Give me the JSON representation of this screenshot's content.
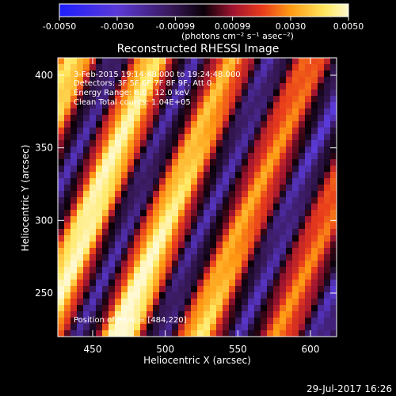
{
  "colorbar": {
    "ticks": [
      {
        "value": -0.005,
        "label": "-0.0050"
      },
      {
        "value": -0.003,
        "label": "-0.0030"
      },
      {
        "value": -0.00099,
        "label": "-0.00099"
      },
      {
        "value": 0.00099,
        "label": "0.00099"
      },
      {
        "value": 0.003,
        "label": "0.0030"
      },
      {
        "value": 0.005,
        "label": "0.0050"
      }
    ],
    "range": [
      -0.005,
      0.005
    ],
    "units_text": "(photons cm⁻² s⁻¹ asec⁻²)",
    "colors": [
      "#1e1eff",
      "#5b3ad8",
      "#3a1a5e",
      "#0a0008",
      "#a01430",
      "#e83a1c",
      "#ff9a14",
      "#ffe860",
      "#fff8d0"
    ]
  },
  "chart_data": {
    "type": "heatmap",
    "title": "Reconstructed RHESSI Image",
    "xlabel": "Heliocentric X (arcsec)",
    "ylabel": "Heliocentric Y (arcsec)",
    "xlim": [
      426,
      618
    ],
    "ylim": [
      220,
      412
    ],
    "x_ticks": [
      450,
      500,
      550,
      600
    ],
    "y_ticks": [
      250,
      300,
      350,
      400
    ],
    "annotations": [
      "3-Feb-2015 19:14:48.000 to 19:24:48.000",
      "Detectors: 3F 5F 6F 7F 8F 9F, Att 0",
      "Energy Range: 6.0 - 12.0 keV",
      "Clean     Total counts: 1.04E+05"
    ],
    "position_text": "Position of Peak = [484,220]",
    "peak": [
      484,
      220
    ]
  },
  "footer": {
    "timestamp": "29-Jul-2017 16:26"
  }
}
